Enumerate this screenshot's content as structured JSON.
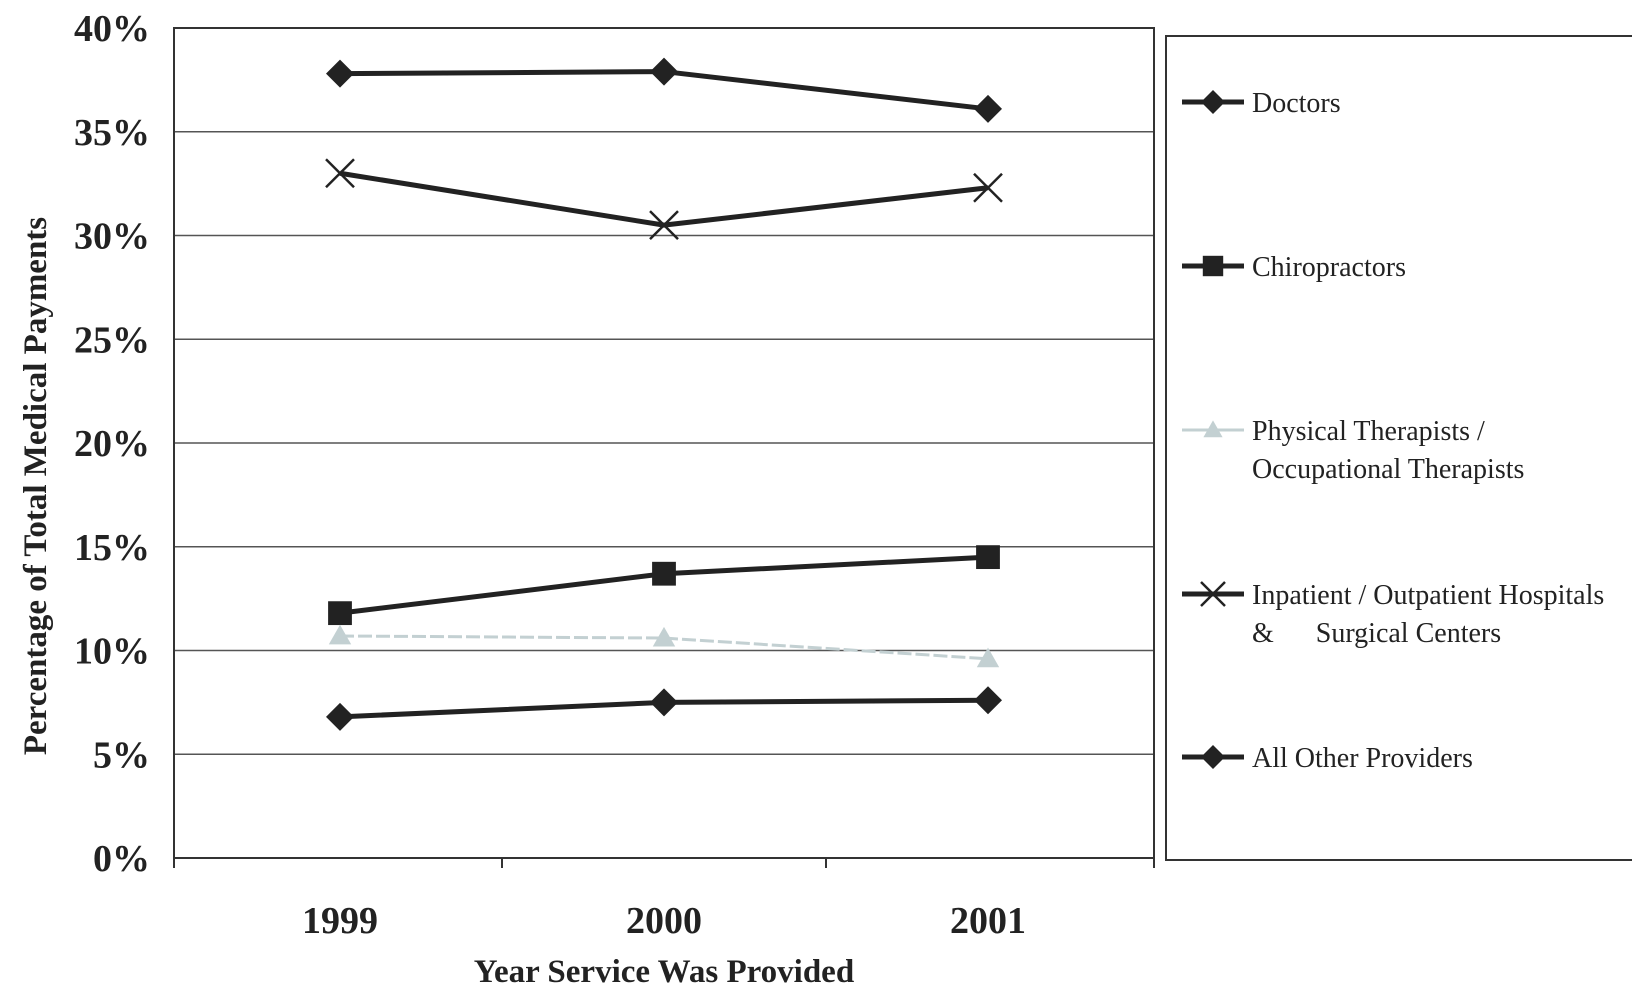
{
  "chart_data": {
    "type": "line",
    "title": "",
    "xlabel": "Year Service Was Provided",
    "ylabel": "Percentage of Total Medical Payments",
    "categories": [
      "1999",
      "2000",
      "2001"
    ],
    "ylim": [
      0,
      40
    ],
    "yticks": [
      0,
      5,
      10,
      15,
      20,
      25,
      30,
      35,
      40
    ],
    "ytick_labels": [
      "0%",
      "5%",
      "10%",
      "15%",
      "20%",
      "25%",
      "30%",
      "35%",
      "40%"
    ],
    "grid": "horizontal",
    "legend_position": "right",
    "series": [
      {
        "name": "Doctors",
        "legend_lines": [
          "Doctors"
        ],
        "values": [
          37.8,
          37.9,
          36.1
        ],
        "marker": "diamond",
        "color": "#222222"
      },
      {
        "name": "Chiropractors",
        "legend_lines": [
          "Chiropractors"
        ],
        "values": [
          11.8,
          13.7,
          14.5
        ],
        "marker": "square",
        "color": "#222222"
      },
      {
        "name": "Physical Therapists / Occupational Therapists",
        "legend_lines": [
          "Physical Therapists /",
          "Occupational Therapists"
        ],
        "values": [
          10.7,
          10.6,
          9.6
        ],
        "marker": "triangle",
        "color": "#c3d0d2"
      },
      {
        "name": "Inpatient / Outpatient Hospitals & Surgical Centers",
        "legend_lines": [
          "Inpatient / Outpatient Hospitals",
          "&      Surgical Centers"
        ],
        "values": [
          33.0,
          30.5,
          32.3
        ],
        "marker": "x",
        "color": "#222222"
      },
      {
        "name": "All Other Providers",
        "legend_lines": [
          "All Other Providers"
        ],
        "values": [
          6.8,
          7.5,
          7.6
        ],
        "marker": "diamond",
        "color": "#222222"
      }
    ]
  }
}
